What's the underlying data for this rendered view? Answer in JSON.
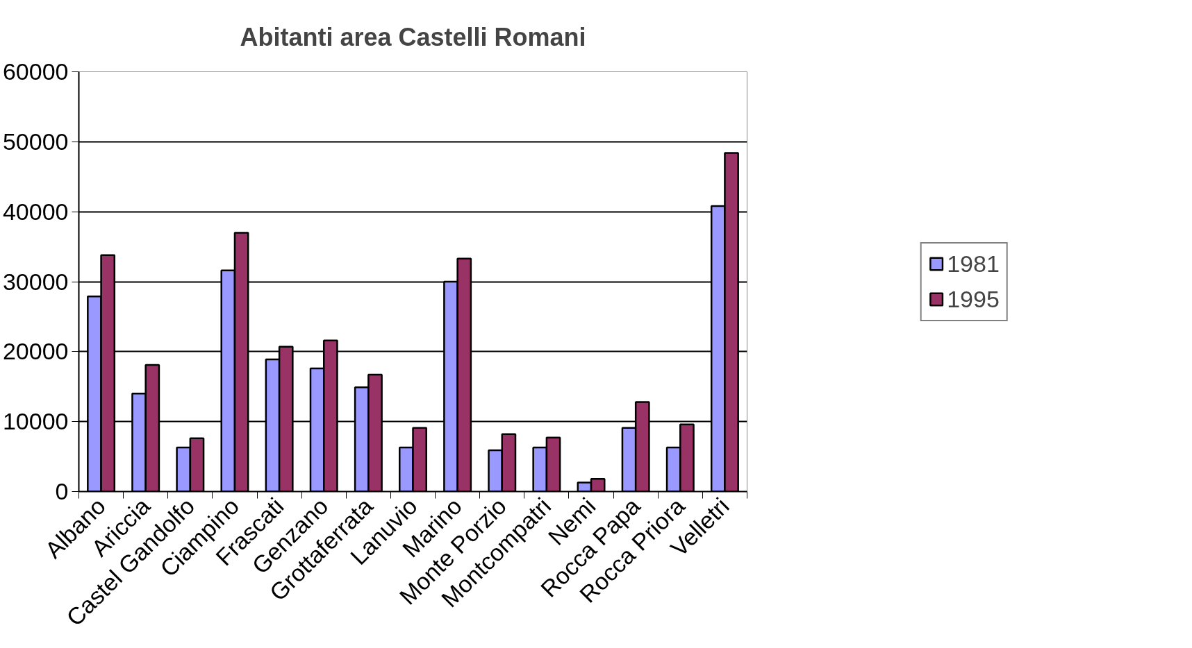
{
  "chart_data": {
    "type": "bar",
    "title": "Abitanti area Castelli Romani",
    "categories": [
      "Albano",
      "Ariccia",
      "Castel Gandolfo",
      "Ciampino",
      "Frascati",
      "Genzano",
      "Grottaferrata",
      "Lanuvio",
      "Marino",
      "Monte Porzio",
      "Montcompatri",
      "Nemi",
      "Rocca Papa",
      "Rocca Priora",
      "Velletri"
    ],
    "series": [
      {
        "name": "1981",
        "color": "#9999ff",
        "values": [
          27900,
          14000,
          6300,
          31600,
          18900,
          17600,
          14900,
          6300,
          30000,
          5900,
          6300,
          1300,
          9100,
          6300,
          40800
        ]
      },
      {
        "name": "1995",
        "color": "#993366",
        "values": [
          33800,
          18100,
          7600,
          37000,
          20700,
          21600,
          16700,
          9100,
          33300,
          8200,
          7700,
          1800,
          12800,
          9600,
          48400
        ]
      }
    ],
    "ylim": [
      0,
      60000
    ],
    "yticks": [
      0,
      10000,
      20000,
      30000,
      40000,
      50000,
      60000
    ],
    "grid": "y",
    "legend": "right"
  }
}
